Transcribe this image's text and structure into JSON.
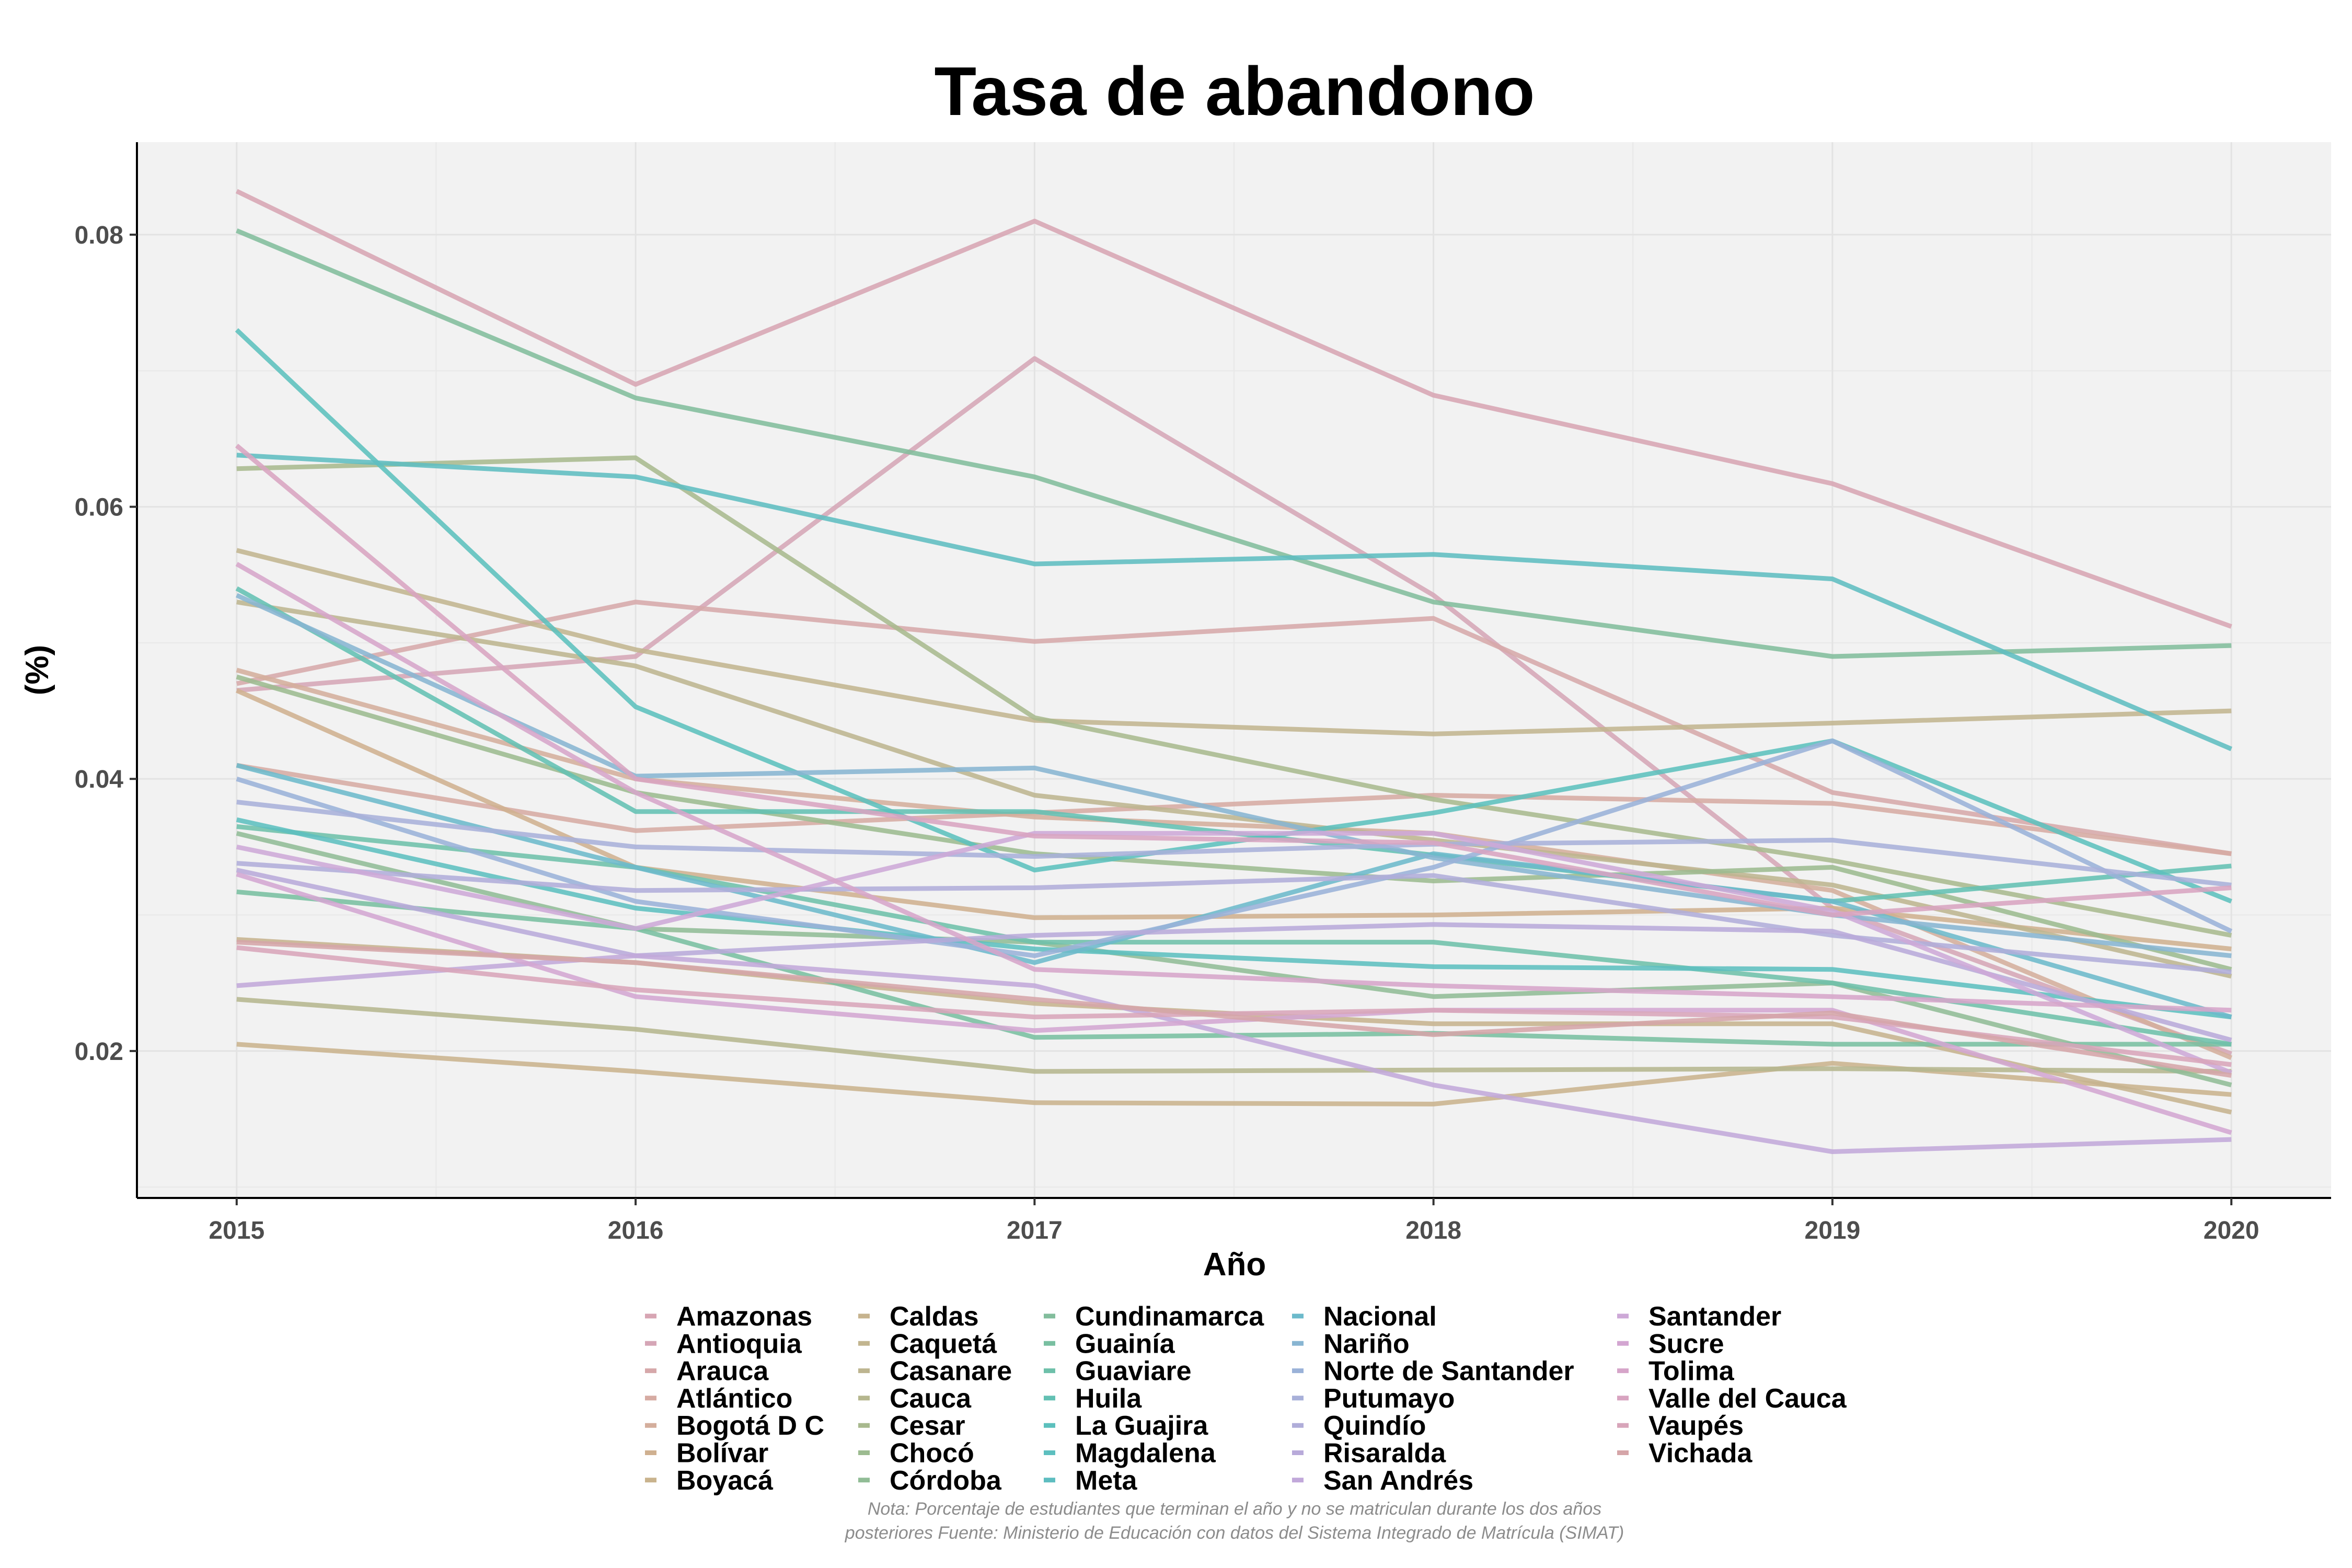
{
  "chart_data": {
    "type": "line",
    "title": "Tasa de abandono",
    "xlabel": "Año",
    "ylabel": "(%)",
    "x": [
      2015,
      2016,
      2017,
      2018,
      2019,
      2020
    ],
    "xlim": [
      2014.75,
      2020.25
    ],
    "ylim": [
      0.0092,
      0.0868
    ],
    "yticks": [
      0.02,
      0.04,
      0.06,
      0.08
    ],
    "ytick_labels": [
      "0.02",
      "0.04",
      "0.06",
      "0.08"
    ],
    "grid": true,
    "legend_position": "bottom",
    "note": "Nota: Porcentaje de estudiantes que terminan el año y no se matriculan durante los dos años posteriores Fuente: Ministerio de Educación con datos del Sistema Integrado de Matrícula (SIMAT)",
    "series": [
      {
        "name": "Amazonas",
        "color": "#d7a5b3",
        "values": [
          0.0832,
          0.069,
          0.081,
          0.0682,
          0.0617,
          0.0512
        ]
      },
      {
        "name": "Antioquia",
        "color": "#d5a6b6",
        "values": [
          0.0465,
          0.049,
          0.0709,
          0.0535,
          0.0305,
          0.0198
        ]
      },
      {
        "name": "Arauca",
        "color": "#d6a8aa",
        "values": [
          0.047,
          0.053,
          0.0501,
          0.0518,
          0.039,
          0.0345
        ]
      },
      {
        "name": "Atlántico",
        "color": "#d6aba3",
        "values": [
          0.041,
          0.0362,
          0.0375,
          0.0388,
          0.0382,
          0.0345
        ]
      },
      {
        "name": "Bogotá D C",
        "color": "#d4ae9c",
        "values": [
          0.048,
          0.04,
          0.0372,
          0.036,
          0.0318,
          0.0195
        ]
      },
      {
        "name": "Bolívar",
        "color": "#cfb090",
        "values": [
          0.0465,
          0.0335,
          0.0298,
          0.03,
          0.0305,
          0.0275
        ]
      },
      {
        "name": "Boyacá",
        "color": "#c9b38d",
        "values": [
          0.0205,
          0.0185,
          0.0162,
          0.0161,
          0.0191,
          0.0168
        ]
      },
      {
        "name": "Caldas",
        "color": "#c6b38e",
        "values": [
          0.0282,
          0.0265,
          0.0235,
          0.022,
          0.022,
          0.0155
        ]
      },
      {
        "name": "Caquetá",
        "color": "#c2b58f",
        "values": [
          0.0568,
          0.0495,
          0.0443,
          0.0433,
          0.0441,
          0.045
        ]
      },
      {
        "name": "Casanare",
        "color": "#bdb590",
        "values": [
          0.053,
          0.0483,
          0.0388,
          0.0355,
          0.0322,
          0.0255
        ]
      },
      {
        "name": "Cauca",
        "color": "#b5b68e",
        "values": [
          0.0238,
          0.0216,
          0.0185,
          0.0186,
          0.0187,
          0.0185
        ]
      },
      {
        "name": "Cesar",
        "color": "#a8b98e",
        "values": [
          0.0628,
          0.0636,
          0.0445,
          0.0385,
          0.034,
          0.0285
        ]
      },
      {
        "name": "Chocó",
        "color": "#9cbb90",
        "values": [
          0.0475,
          0.039,
          0.0345,
          0.0325,
          0.0335,
          0.026
        ]
      },
      {
        "name": "Córdoba",
        "color": "#91bc96",
        "values": [
          0.036,
          0.029,
          0.028,
          0.024,
          0.025,
          0.0175
        ]
      },
      {
        "name": "Cundinamarca",
        "color": "#82bd9c",
        "values": [
          0.0803,
          0.068,
          0.0622,
          0.053,
          0.049,
          0.0498
        ]
      },
      {
        "name": "Guainía",
        "color": "#79bfa1",
        "values": [
          0.0317,
          0.029,
          0.021,
          0.0213,
          0.0205,
          0.0205
        ]
      },
      {
        "name": "Guaviare",
        "color": "#6ec0aa",
        "values": [
          0.0365,
          0.0335,
          0.028,
          0.028,
          0.025,
          0.0205
        ]
      },
      {
        "name": "Huila",
        "color": "#63c0b3",
        "values": [
          0.054,
          0.0376,
          0.0376,
          0.0344,
          0.031,
          0.0336
        ]
      },
      {
        "name": "La Guajira",
        "color": "#5cc0bd",
        "values": [
          0.073,
          0.0453,
          0.0333,
          0.0375,
          0.0428,
          0.031
        ]
      },
      {
        "name": "Magdalena",
        "color": "#5dbfbf",
        "values": [
          0.037,
          0.0305,
          0.0275,
          0.0262,
          0.026,
          0.0225
        ]
      },
      {
        "name": "Meta",
        "color": "#5ebdc0",
        "values": [
          0.0638,
          0.0622,
          0.0558,
          0.0565,
          0.0547,
          0.0422
        ]
      },
      {
        "name": "Nacional",
        "color": "#6cbacb",
        "values": [
          0.041,
          0.0335,
          0.0265,
          0.0345,
          0.031,
          0.0225
        ]
      },
      {
        "name": "Nariño",
        "color": "#88b5d2",
        "values": [
          0.0535,
          0.0402,
          0.0408,
          0.0342,
          0.03,
          0.027
        ]
      },
      {
        "name": "Norte de Santander",
        "color": "#9ab2d8",
        "values": [
          0.04,
          0.031,
          0.027,
          0.0335,
          0.0428,
          0.0288
        ]
      },
      {
        "name": "Putumayo",
        "color": "#a8b0d9",
        "values": [
          0.0383,
          0.035,
          0.0343,
          0.0352,
          0.0355,
          0.0322
        ]
      },
      {
        "name": "Quindío",
        "color": "#b0add9",
        "values": [
          0.0338,
          0.0318,
          0.032,
          0.0329,
          0.0285,
          0.0258
        ]
      },
      {
        "name": "Risaralda",
        "color": "#b8aada",
        "values": [
          0.0333,
          0.027,
          0.0285,
          0.0293,
          0.0288,
          0.0208
        ]
      },
      {
        "name": "San Andrés",
        "color": "#c1a8da",
        "values": [
          0.0248,
          0.027,
          0.0248,
          0.0175,
          0.0126,
          0.0135
        ]
      },
      {
        "name": "Santander",
        "color": "#cda8d7",
        "values": [
          0.035,
          0.029,
          0.036,
          0.036,
          0.0303,
          0.0184
        ]
      },
      {
        "name": "Sucre",
        "color": "#d3a6d1",
        "values": [
          0.033,
          0.024,
          0.0215,
          0.023,
          0.023,
          0.014
        ]
      },
      {
        "name": "Tolima",
        "color": "#d6a5c9",
        "values": [
          0.0558,
          0.039,
          0.026,
          0.0248,
          0.024,
          0.023
        ]
      },
      {
        "name": "Valle del Cauca",
        "color": "#d8a4c0",
        "values": [
          0.0645,
          0.04,
          0.0358,
          0.0353,
          0.03,
          0.032
        ]
      },
      {
        "name": "Vaupés",
        "color": "#d8a5ba",
        "values": [
          0.0276,
          0.0245,
          0.0225,
          0.023,
          0.0225,
          0.019
        ]
      },
      {
        "name": "Vichada",
        "color": "#d5a5a8",
        "values": [
          0.028,
          0.0265,
          0.0238,
          0.0212,
          0.0228,
          0.0182
        ]
      }
    ]
  }
}
